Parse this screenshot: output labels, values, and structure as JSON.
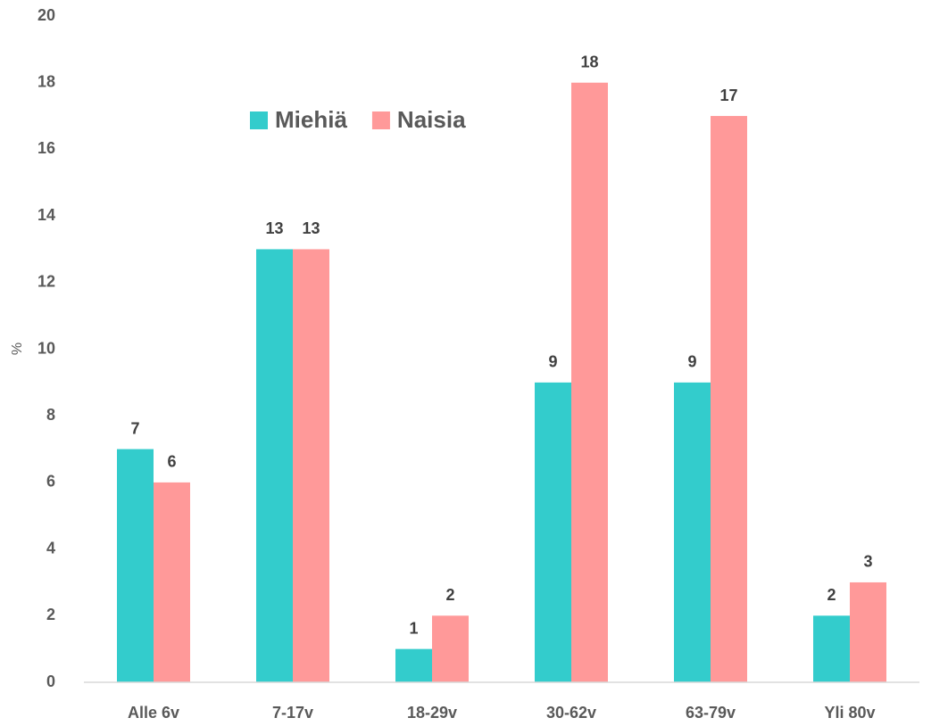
{
  "chart_data": {
    "type": "bar",
    "y_label": "%",
    "categories": [
      "Alle 6v",
      "7-17v",
      "18-29v",
      "30-62v",
      "63-79v",
      "Yli 80v"
    ],
    "series": [
      {
        "name": "Miehiä",
        "color": "#33cccc",
        "values": [
          7,
          13,
          1,
          9,
          9,
          2
        ]
      },
      {
        "name": "Naisia",
        "color": "#ff9999",
        "values": [
          6,
          13,
          2,
          18,
          17,
          3
        ]
      }
    ],
    "ylim": [
      0,
      20
    ],
    "yticks": [
      0,
      2,
      4,
      6,
      8,
      10,
      12,
      14,
      16,
      18,
      20
    ],
    "grid": false,
    "legend": "upper left",
    "data_labels": true
  }
}
